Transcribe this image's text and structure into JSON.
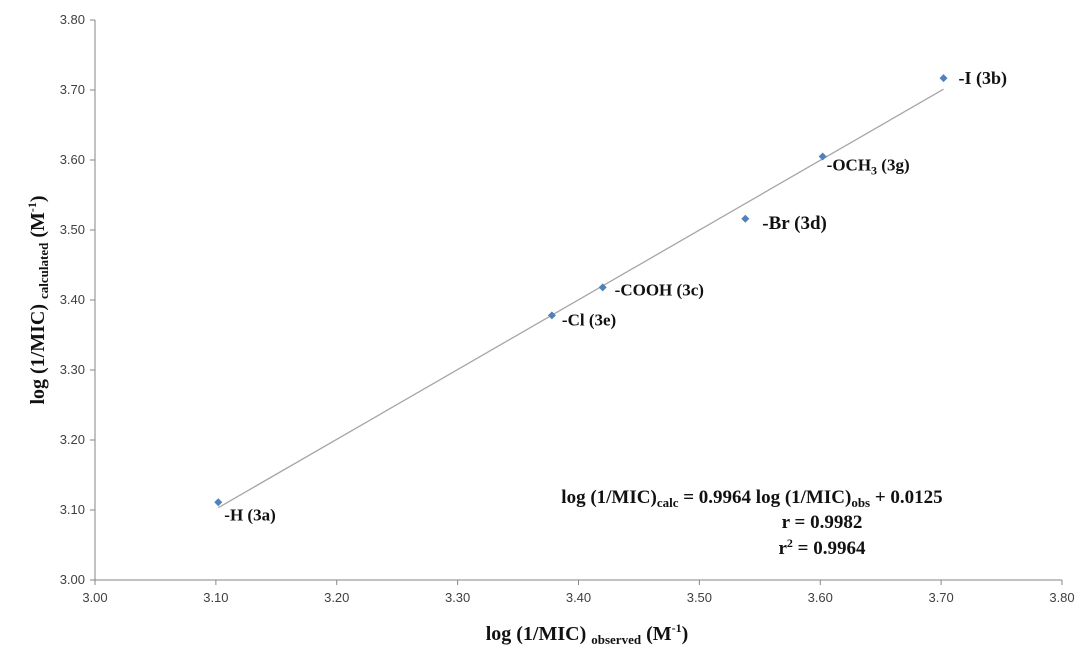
{
  "chart_data": {
    "type": "scatter",
    "xlim": [
      3.0,
      3.8
    ],
    "ylim": [
      3.0,
      3.8
    ],
    "x_ticks": [
      "3.00",
      "3.10",
      "3.20",
      "3.30",
      "3.40",
      "3.50",
      "3.60",
      "3.70",
      "3.80"
    ],
    "y_ticks": [
      "3.00",
      "3.10",
      "3.20",
      "3.30",
      "3.40",
      "3.50",
      "3.60",
      "3.70",
      "3.80"
    ],
    "grid": false,
    "legend": "none",
    "marker_color": "#4f81bd",
    "trendline_color": "#a6a6a6",
    "points": [
      {
        "label": "-H (3a)",
        "x": 3.102,
        "y": 3.111
      },
      {
        "label": "-Cl (3e)",
        "x": 3.378,
        "y": 3.378
      },
      {
        "label": "-COOH (3c)",
        "x": 3.42,
        "y": 3.418
      },
      {
        "label": "-Br (3d)",
        "x": 3.538,
        "y": 3.516
      },
      {
        "label_main": "-OCH",
        "label_sub": "3",
        "label_tail": " (3g)",
        "x": 3.602,
        "y": 3.605
      },
      {
        "label": "-I (3b)",
        "x": 3.702,
        "y": 3.717
      }
    ],
    "trendline": {
      "x_start": 3.102,
      "x_end": 3.702,
      "slope": 0.9964,
      "intercept": 0.0125
    },
    "xlabel": {
      "main": "log (1/MIC) ",
      "sub": "observed",
      "unit": " (M",
      "sup": "-1",
      "close": ")"
    },
    "ylabel": {
      "main": "log (1/MIC) ",
      "sub": "calculated",
      "unit": " (M",
      "sup": "-1",
      "close": ")"
    },
    "equation": {
      "l1_a": "log (1/MIC)",
      "l1_sub1": "calc",
      "l1_b": " = 0.9964 log (1/MIC)",
      "l1_sub2": "obs",
      "l1_c": " + 0.0125",
      "line2": "r = 0.9982",
      "l3_a": "r",
      "l3_sup": "2",
      "l3_b": " = 0.9964"
    }
  }
}
